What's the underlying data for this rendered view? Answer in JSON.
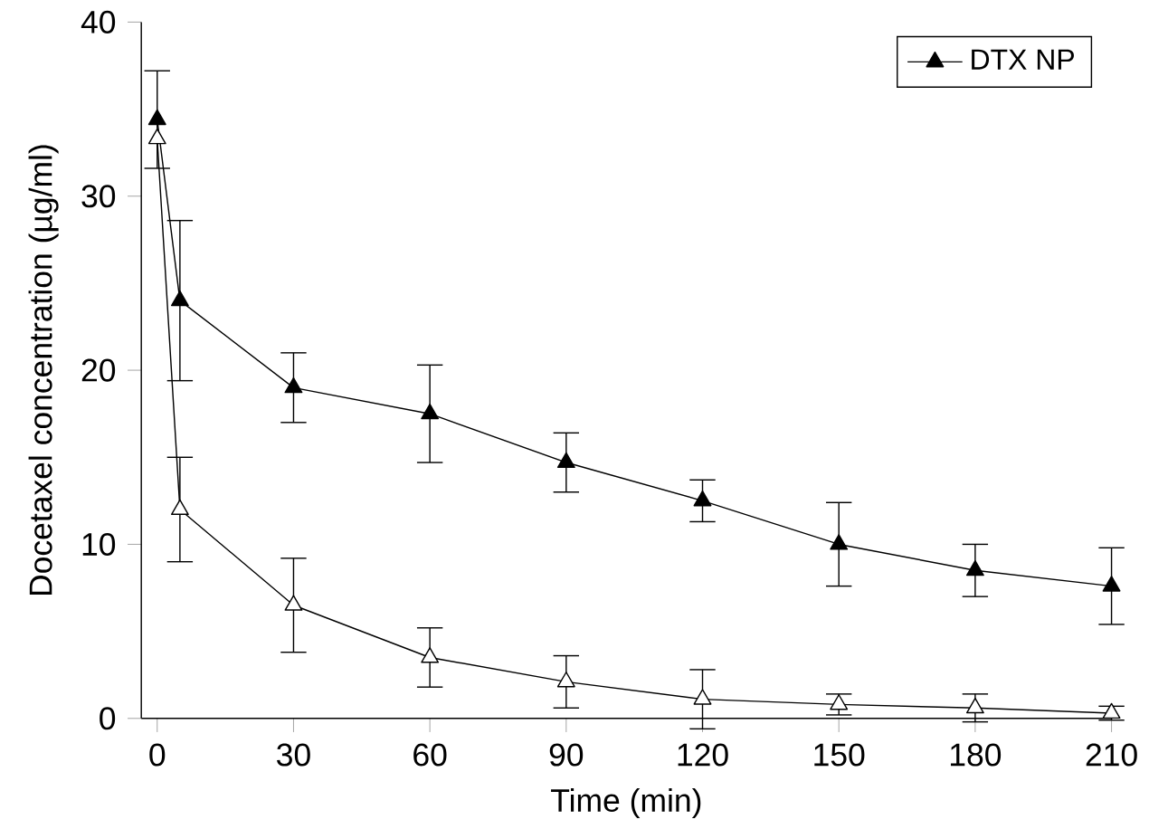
{
  "chart_data": {
    "type": "line",
    "xlabel": "Time (min)",
    "ylabel": "Docetaxel concentration (µg/ml)",
    "x": [
      0,
      5,
      30,
      60,
      90,
      120,
      150,
      180,
      210
    ],
    "series": [
      {
        "color": "#000000",
        "values": [
          33.3,
          12,
          6.5,
          3.5,
          2.1,
          1.1,
          0.8,
          0.6,
          0.3
        ],
        "errors": [
          null,
          3,
          2.7,
          1.7,
          1.5,
          1.7,
          0.6,
          0.8,
          0.4
        ]
      },
      {
        "name": "DTX NP",
        "color": "#000000",
        "values": [
          34.4,
          24,
          19,
          17.5,
          14.7,
          12.5,
          10,
          8.5,
          7.6
        ],
        "errors": [
          2.8,
          4.6,
          2,
          2.8,
          1.7,
          1.2,
          2.4,
          1.5,
          2.2
        ]
      }
    ],
    "xlim": [
      -3.5,
      210
    ],
    "ylim": [
      0,
      40
    ],
    "xticks": [
      0,
      30,
      60,
      90,
      120,
      150,
      180,
      210
    ],
    "yticks": [
      0,
      10,
      20,
      30,
      40
    ],
    "marker": "triangle",
    "line_style": "solid",
    "legend": "top right",
    "grid": false
  }
}
